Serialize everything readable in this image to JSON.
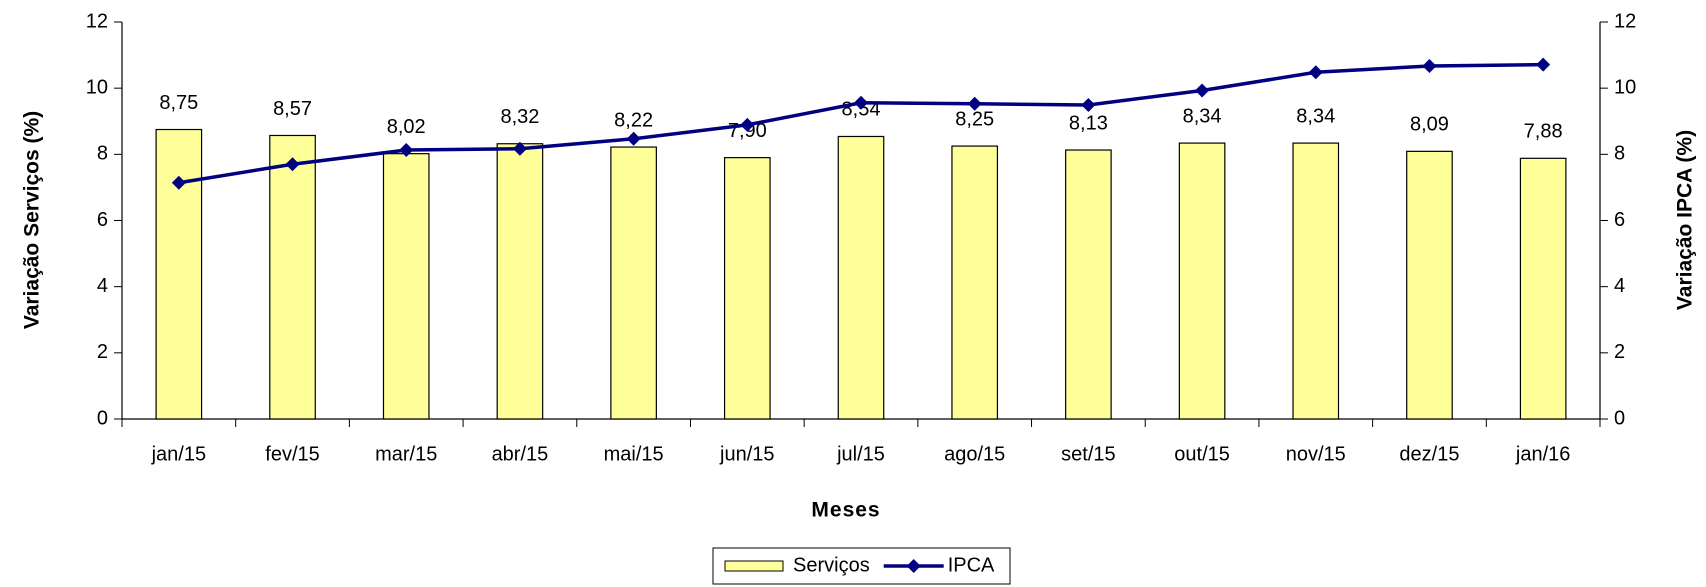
{
  "chart_data": {
    "type": "bar",
    "x_label": "Meses",
    "y_label": "Variação Serviços (%)",
    "y2_label": "Variação IPCA (%)",
    "categories": [
      "jan/15",
      "fev/15",
      "mar/15",
      "abr/15",
      "mai/15",
      "jun/15",
      "jul/15",
      "ago/15",
      "set/15",
      "out/15",
      "nov/15",
      "dez/15",
      "jan/16"
    ],
    "series": [
      {
        "name": "Serviços",
        "type": "bar",
        "color": "#ffff99",
        "values": [
          8.75,
          8.57,
          8.02,
          8.32,
          8.22,
          7.9,
          8.54,
          8.25,
          8.13,
          8.34,
          8.34,
          8.09,
          7.88
        ],
        "value_labels": [
          "8,75",
          "8,57",
          "8,02",
          "8,32",
          "8,22",
          "7,90",
          "8,54",
          "8,25",
          "8,13",
          "8,34",
          "8,34",
          "8,09",
          "7,88"
        ]
      },
      {
        "name": "IPCA",
        "type": "line",
        "axis": "y2",
        "color": "#000080",
        "values": [
          7.14,
          7.7,
          8.13,
          8.17,
          8.47,
          8.89,
          9.56,
          9.53,
          9.49,
          9.93,
          10.48,
          10.67,
          10.71
        ]
      }
    ],
    "ylim": [
      0,
      12
    ],
    "yticks": [
      0,
      2,
      4,
      6,
      8,
      10,
      12
    ],
    "y2lim": [
      0,
      12
    ],
    "y2ticks": [
      0,
      2,
      4,
      6,
      8,
      10,
      12
    ],
    "legend": "bottom"
  }
}
